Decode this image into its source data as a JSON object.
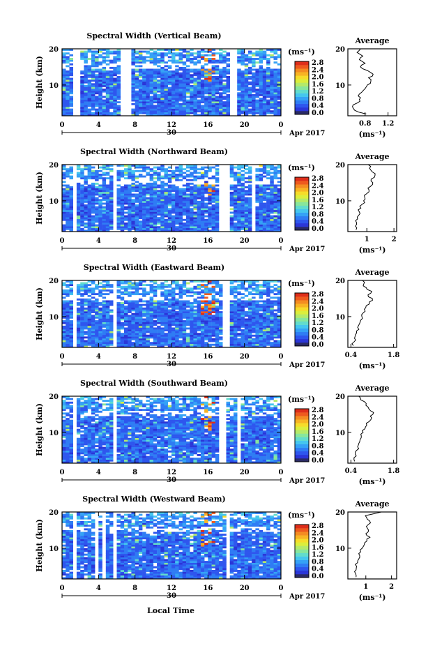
{
  "figure": {
    "date_label": "Apr 2017",
    "day_label": "30",
    "xlabel": "Local Time"
  },
  "colorbar": {
    "unit_label": "(ms⁻¹)",
    "ticks": [
      "2.8",
      "2.4",
      "2.0",
      "1.6",
      "1.2",
      "0.8",
      "0.4",
      "0.0"
    ],
    "colors": [
      "#2a2a66",
      "#2b36d8",
      "#2e56ee",
      "#2f7cf4",
      "#35a2f6",
      "#45c6ee",
      "#62dccc",
      "#88e69c",
      "#b4ea6a",
      "#dcee3c",
      "#f6dc2a",
      "#f8b424",
      "#f48c22",
      "#ee5a1e",
      "#de2e1a"
    ]
  },
  "chart_data": [
    {
      "type": "heatmap",
      "title": "Spectral Width (Vertical Beam)",
      "ylabel": "Height (km)",
      "xlabel": "Local Time",
      "x_ticks": [
        "0",
        "4",
        "8",
        "12",
        "16",
        "20",
        "0"
      ],
      "y_ticks": [
        "20",
        "10"
      ],
      "xlim": [
        0,
        24
      ],
      "ylim": [
        1.5,
        20
      ],
      "value_unit": "ms⁻¹",
      "value_range": [
        0.0,
        3.0
      ],
      "data_gaps_hours": [
        [
          1.2,
          2.0
        ],
        [
          6.4,
          7.6
        ],
        [
          18.3,
          19.0
        ]
      ],
      "average": {
        "title": "Average",
        "xlabel": "(ms⁻¹)",
        "x_ticks": [
          "0.8",
          "1.2"
        ],
        "y_ticks": [
          "20",
          "10"
        ],
        "xlim": [
          0.5,
          1.35
        ],
        "height": [
          2,
          3,
          4,
          5,
          6,
          7,
          8,
          9,
          10,
          11,
          12,
          13,
          14,
          15,
          16,
          17,
          18,
          19,
          20
        ],
        "value": [
          0.82,
          0.62,
          0.58,
          0.66,
          0.7,
          0.68,
          0.74,
          0.8,
          0.84,
          0.9,
          0.86,
          0.94,
          0.84,
          0.72,
          0.8,
          0.7,
          0.76,
          0.66,
          0.72
        ]
      }
    },
    {
      "type": "heatmap",
      "title": "Spectral Width (Northward Beam)",
      "ylabel": "Height (km)",
      "xlabel": "Local Time",
      "x_ticks": [
        "0",
        "4",
        "8",
        "12",
        "16",
        "20",
        "0"
      ],
      "y_ticks": [
        "20",
        "10"
      ],
      "xlim": [
        0,
        24
      ],
      "ylim": [
        1.5,
        20
      ],
      "value_unit": "ms⁻¹",
      "value_range": [
        0.0,
        3.0
      ],
      "data_gaps_hours": [
        [
          1.2,
          1.6
        ],
        [
          4.2,
          4.6
        ],
        [
          5.6,
          6.0
        ],
        [
          17.2,
          18.4
        ],
        [
          20.6,
          21.0
        ]
      ],
      "average": {
        "title": "Average",
        "xlabel": "(ms⁻¹)",
        "x_ticks": [
          "1",
          "2"
        ],
        "y_ticks": [
          "20",
          "10"
        ],
        "xlim": [
          0.3,
          2.1
        ],
        "height": [
          2,
          3,
          4,
          5,
          6,
          7,
          8,
          9,
          10,
          11,
          12,
          13,
          14,
          15,
          16,
          17,
          18,
          19,
          20
        ],
        "value": [
          0.6,
          0.58,
          0.62,
          0.66,
          0.7,
          0.72,
          0.78,
          0.82,
          0.88,
          0.92,
          1.0,
          1.08,
          1.14,
          1.22,
          1.16,
          1.3,
          1.2,
          1.1,
          1.05
        ]
      }
    },
    {
      "type": "heatmap",
      "title": "Spectral Width (Eastward Beam)",
      "ylabel": "Height (km)",
      "xlabel": "Local Time",
      "x_ticks": [
        "0",
        "4",
        "8",
        "12",
        "16",
        "20",
        "0"
      ],
      "y_ticks": [
        "20",
        "10"
      ],
      "xlim": [
        0,
        24
      ],
      "ylim": [
        1.5,
        20
      ],
      "value_unit": "ms⁻¹",
      "value_range": [
        0.0,
        3.0
      ],
      "data_gaps_hours": [
        [
          1.2,
          1.6
        ],
        [
          4.2,
          4.6
        ],
        [
          5.6,
          6.0
        ],
        [
          17.6,
          18.4
        ]
      ],
      "average": {
        "title": "Average",
        "xlabel": "(ms⁻¹)",
        "x_ticks": [
          "0.4",
          "1.8"
        ],
        "y_ticks": [
          "20",
          "10"
        ],
        "xlim": [
          0.3,
          1.9
        ],
        "height": [
          2,
          3,
          4,
          5,
          6,
          7,
          8,
          9,
          10,
          11,
          12,
          13,
          14,
          15,
          16,
          17,
          18,
          19,
          20
        ],
        "value": [
          0.48,
          0.5,
          0.52,
          0.55,
          0.58,
          0.62,
          0.68,
          0.72,
          0.76,
          0.8,
          0.84,
          0.9,
          1.0,
          1.1,
          0.96,
          1.08,
          0.9,
          0.82,
          0.78
        ]
      }
    },
    {
      "type": "heatmap",
      "title": "Spectral Width (Southward Beam)",
      "ylabel": "Height (km)",
      "xlabel": "Local Time",
      "x_ticks": [
        "0",
        "4",
        "8",
        "12",
        "16",
        "20",
        "0"
      ],
      "y_ticks": [
        "20",
        "10"
      ],
      "xlim": [
        0,
        24
      ],
      "ylim": [
        1.5,
        20
      ],
      "value_unit": "ms⁻¹",
      "value_range": [
        0.0,
        3.0
      ],
      "data_gaps_hours": [
        [
          1.2,
          1.6
        ],
        [
          4.2,
          4.6
        ],
        [
          5.6,
          6.0
        ],
        [
          17.4,
          18.0
        ],
        [
          19.2,
          19.6
        ]
      ],
      "average": {
        "title": "Average",
        "xlabel": "(ms⁻¹)",
        "x_ticks": [
          "0.4",
          "1.8"
        ],
        "y_ticks": [
          "20",
          "10"
        ],
        "xlim": [
          0.3,
          1.9
        ],
        "height": [
          2,
          3,
          4,
          5,
          6,
          7,
          8,
          9,
          10,
          11,
          12,
          13,
          14,
          15,
          16,
          17,
          18,
          19,
          20
        ],
        "value": [
          0.52,
          0.5,
          0.54,
          0.58,
          0.62,
          0.66,
          0.7,
          0.74,
          0.8,
          0.86,
          0.92,
          1.0,
          1.08,
          1.12,
          1.04,
          0.96,
          0.9,
          0.72,
          0.66
        ]
      }
    },
    {
      "type": "heatmap",
      "title": "Spectral Width (Westward Beam)",
      "ylabel": "Height (km)",
      "xlabel": "Local Time",
      "x_ticks": [
        "0",
        "4",
        "8",
        "12",
        "16",
        "20",
        "0"
      ],
      "y_ticks": [
        "20",
        "10"
      ],
      "xlim": [
        0,
        24
      ],
      "ylim": [
        1.5,
        20
      ],
      "value_unit": "ms⁻¹",
      "value_range": [
        0.0,
        3.0
      ],
      "data_gaps_hours": [
        [
          1.2,
          1.6
        ],
        [
          3.6,
          4.0
        ],
        [
          4.4,
          4.8
        ],
        [
          5.6,
          6.0
        ],
        [
          17.8,
          18.4
        ]
      ],
      "average": {
        "title": "Average",
        "xlabel": "(ms⁻¹)",
        "x_ticks": [
          "1",
          "2"
        ],
        "y_ticks": [
          "20",
          "10"
        ],
        "xlim": [
          0.3,
          2.2
        ],
        "height": [
          2,
          3,
          4,
          5,
          6,
          7,
          8,
          9,
          10,
          11,
          12,
          13,
          14,
          15,
          16,
          17,
          18,
          19,
          20
        ],
        "value": [
          0.62,
          0.6,
          0.62,
          0.64,
          0.68,
          0.72,
          0.76,
          0.8,
          0.86,
          0.94,
          1.04,
          1.16,
          1.0,
          1.1,
          1.02,
          1.18,
          1.06,
          0.98,
          1.6
        ]
      }
    }
  ]
}
